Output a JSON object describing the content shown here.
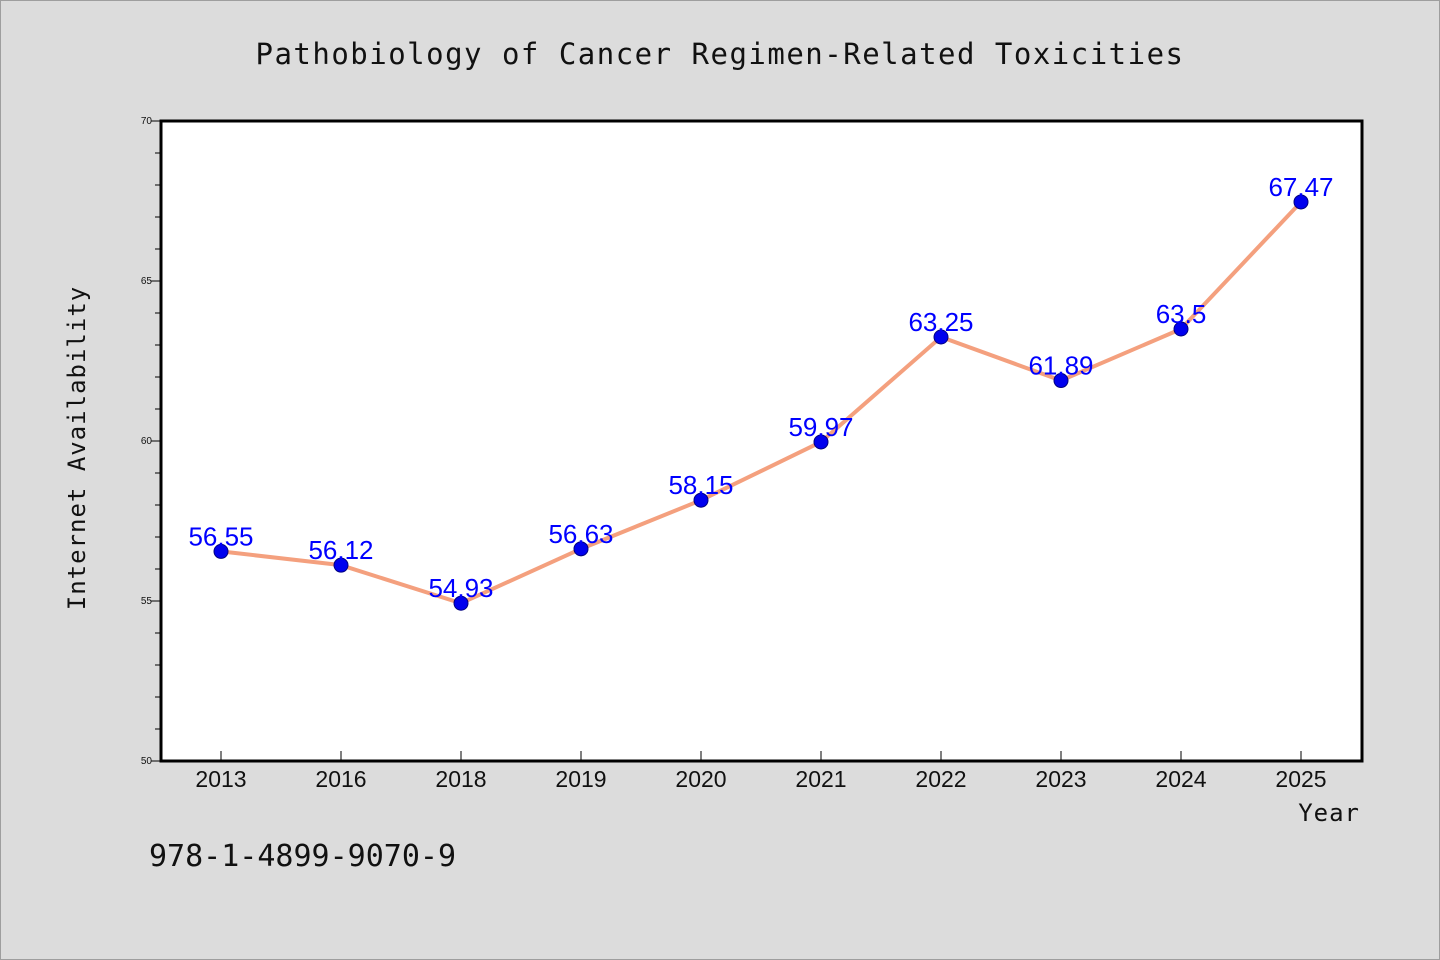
{
  "figure": {
    "footer_text": "978-1-4899-9070-9",
    "background_color": "#dcdcdc",
    "plot_background_color": "#ffffff"
  },
  "chart_data": {
    "type": "line",
    "title": "Pathobiology of Cancer Regimen-Related Toxicities",
    "xlabel": "Year",
    "ylabel": "Internet Availability",
    "categories": [
      "2013",
      "2016",
      "2018",
      "2019",
      "2020",
      "2021",
      "2022",
      "2023",
      "2024",
      "2025"
    ],
    "series": [
      {
        "values": [
          56.55,
          56.12,
          54.93,
          56.63,
          58.15,
          59.97,
          63.25,
          61.89,
          63.5,
          67.47
        ],
        "line_color": "#f4a07e",
        "marker_color": "#0000ee",
        "label_color": "#0000ff"
      }
    ],
    "ylim": [
      50,
      70
    ],
    "y_major_ticks": [
      50,
      55,
      60,
      65,
      70
    ],
    "y_minor_step": 1,
    "grid": false,
    "legend": "none"
  }
}
